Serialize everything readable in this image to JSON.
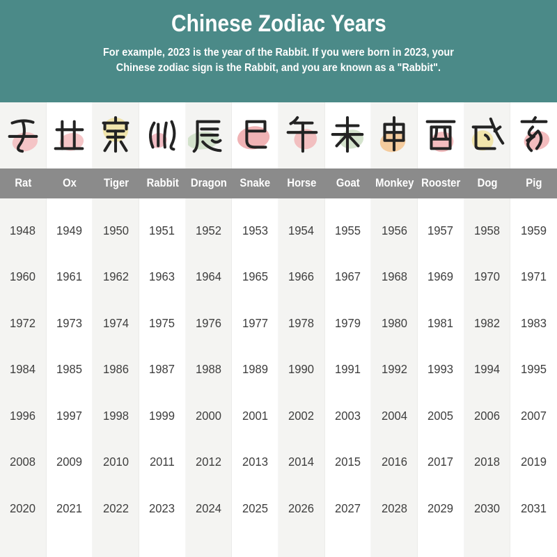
{
  "header": {
    "bg_color": "#4b8a88",
    "title": "Chinese Zodiac Years",
    "subtitle_line1": "For example, 2023 is the year of the Rabbit. If you were born in 2023, your",
    "subtitle_line2": "Chinese zodiac sign is the Rabbit, and you are known as a \"Rabbit\"."
  },
  "table": {
    "name_band_color": "#8b8b8b",
    "stripe_color": "#f4f4f2",
    "year_text_color": "#3f3f3f",
    "columns": [
      {
        "name": "Rat",
        "branch_char": "子",
        "icon": "rat-branch-glyph-icon",
        "blob_color": "#f4bfc1"
      },
      {
        "name": "Ox",
        "branch_char": "丑",
        "icon": "ox-branch-glyph-icon",
        "blob_color": "#f4bfc1"
      },
      {
        "name": "Tiger",
        "branch_char": "寅",
        "icon": "tiger-branch-glyph-icon",
        "blob_color": "#f1e3a4"
      },
      {
        "name": "Rabbit",
        "branch_char": "卯",
        "icon": "rabbit-branch-glyph-icon",
        "blob_color": "#f0b5bd"
      },
      {
        "name": "Dragon",
        "branch_char": "辰",
        "icon": "dragon-branch-glyph-icon",
        "blob_color": "#cfe0c8"
      },
      {
        "name": "Snake",
        "branch_char": "巳",
        "icon": "snake-branch-glyph-icon",
        "blob_color": "#eeabad"
      },
      {
        "name": "Horse",
        "branch_char": "午",
        "icon": "horse-branch-glyph-icon",
        "blob_color": "#f2b9ba"
      },
      {
        "name": "Goat",
        "branch_char": "未",
        "icon": "goat-branch-glyph-icon",
        "blob_color": "#cfe0c8"
      },
      {
        "name": "Monkey",
        "branch_char": "申",
        "icon": "monkey-branch-glyph-icon",
        "blob_color": "#f4c694"
      },
      {
        "name": "Rooster",
        "branch_char": "酉",
        "icon": "rooster-branch-glyph-icon",
        "blob_color": "#f2b5b7"
      },
      {
        "name": "Dog",
        "branch_char": "戌",
        "icon": "dog-branch-glyph-icon",
        "blob_color": "#f1e3a4"
      },
      {
        "name": "Pig",
        "branch_char": "亥",
        "icon": "pig-branch-glyph-icon",
        "blob_color": "#f2b5b7"
      }
    ]
  },
  "chart_data": {
    "type": "table",
    "title": "Chinese Zodiac Years",
    "columns": [
      "Rat",
      "Ox",
      "Tiger",
      "Rabbit",
      "Dragon",
      "Snake",
      "Horse",
      "Goat",
      "Monkey",
      "Rooster",
      "Dog",
      "Pig"
    ],
    "rows": [
      [
        1948,
        1949,
        1950,
        1951,
        1952,
        1953,
        1954,
        1955,
        1956,
        1957,
        1958,
        1959
      ],
      [
        1960,
        1961,
        1962,
        1963,
        1964,
        1965,
        1966,
        1967,
        1968,
        1969,
        1970,
        1971
      ],
      [
        1972,
        1973,
        1974,
        1975,
        1976,
        1977,
        1978,
        1979,
        1980,
        1981,
        1982,
        1983
      ],
      [
        1984,
        1985,
        1986,
        1987,
        1988,
        1989,
        1990,
        1991,
        1992,
        1993,
        1994,
        1995
      ],
      [
        1996,
        1997,
        1998,
        1999,
        2000,
        2001,
        2002,
        2003,
        2004,
        2005,
        2006,
        2007
      ],
      [
        2008,
        2009,
        2010,
        2011,
        2012,
        2013,
        2014,
        2015,
        2016,
        2017,
        2018,
        2019
      ],
      [
        2020,
        2021,
        2022,
        2023,
        2024,
        2025,
        2026,
        2027,
        2028,
        2029,
        2030,
        2031
      ]
    ]
  }
}
